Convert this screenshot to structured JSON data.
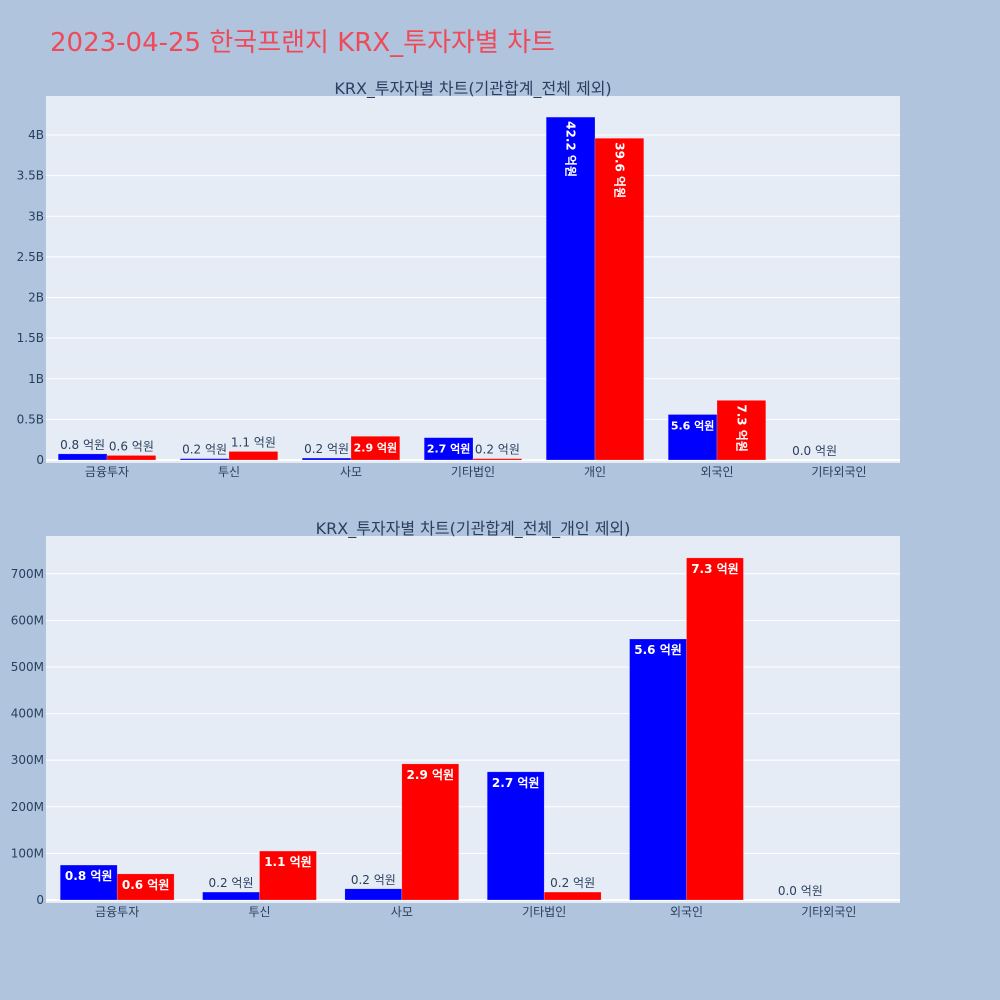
{
  "title": "2023-04-25 한국프랜지 KRX_투자자별 차트",
  "colors": {
    "blue": "#0000ff",
    "red": "#ff0000",
    "plot_bg": "#e5ecf6",
    "page_bg": "#b0c4de"
  },
  "chart_data": [
    {
      "type": "bar",
      "title": "KRX_투자자별 차트(기관합계_전체 제외)",
      "categories": [
        "금융투자",
        "투신",
        "사모",
        "기타법인",
        "개인",
        "외국인",
        "기타외국인"
      ],
      "ylim": [
        0,
        4480000000
      ],
      "yticks": [
        0,
        500000000,
        1000000000,
        1500000000,
        2000000000,
        2500000000,
        3000000000,
        3500000000,
        4000000000
      ],
      "ytick_labels": [
        "0",
        "0.5B",
        "1B",
        "1.5B",
        "2B",
        "2.5B",
        "3B",
        "3.5B",
        "4B"
      ],
      "grid": true,
      "series": [
        {
          "color": "#0000ff",
          "values": [
            75000000,
            17000000,
            24000000,
            275000000,
            4220000000,
            560000000,
            0
          ],
          "labels": [
            "0.8 억원",
            "0.2 억원",
            "0.2 억원",
            "2.7 억원",
            "42.2 억원",
            "5.6 억원",
            "0.0 억원"
          ]
        },
        {
          "color": "#ff0000",
          "values": [
            56000000,
            105000000,
            292000000,
            17000000,
            3960000000,
            734000000,
            0
          ],
          "labels": [
            "0.6 억원",
            "1.1 억원",
            "2.9 억원",
            "0.2 억원",
            "39.6 억원",
            "7.3 억원",
            ""
          ]
        }
      ]
    },
    {
      "type": "bar",
      "title": "KRX_투자자별 차트(기관합계_전체_개인 제외)",
      "categories": [
        "금융투자",
        "투신",
        "사모",
        "기타법인",
        "외국인",
        "기타외국인"
      ],
      "ylim": [
        0,
        781000000
      ],
      "yticks": [
        0,
        100000000,
        200000000,
        300000000,
        400000000,
        500000000,
        600000000,
        700000000
      ],
      "ytick_labels": [
        "0",
        "100M",
        "200M",
        "300M",
        "400M",
        "500M",
        "600M",
        "700M"
      ],
      "grid": true,
      "series": [
        {
          "color": "#0000ff",
          "values": [
            75000000,
            17000000,
            24000000,
            275000000,
            560000000,
            0
          ],
          "labels": [
            "0.8 억원",
            "0.2 억원",
            "0.2 억원",
            "2.7 억원",
            "5.6 억원",
            "0.0 억원"
          ]
        },
        {
          "color": "#ff0000",
          "values": [
            56000000,
            105000000,
            292000000,
            17000000,
            734000000,
            0
          ],
          "labels": [
            "0.6 억원",
            "1.1 억원",
            "2.9 억원",
            "0.2 억원",
            "7.3 억원",
            ""
          ]
        }
      ]
    }
  ]
}
